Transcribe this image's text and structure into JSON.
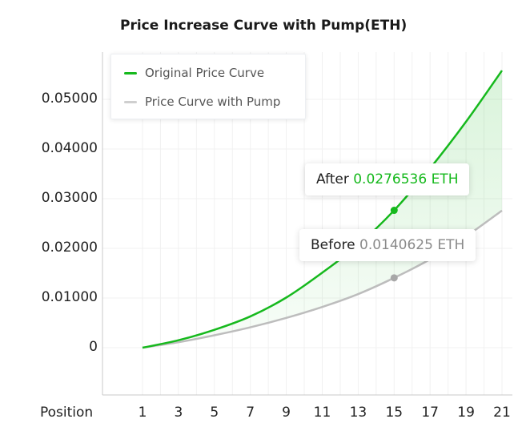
{
  "chart_data": {
    "type": "line",
    "title": "Price Increase Curve with Pump(ETH)",
    "xlabel": "Position",
    "ylabel": "",
    "x_ticks": [
      1,
      3,
      5,
      7,
      9,
      11,
      13,
      15,
      17,
      19,
      21
    ],
    "y_ticks": [
      "0",
      "0.01000",
      "0.02000",
      "0.03000",
      "0.04000",
      "0.05000"
    ],
    "xlim": [
      1,
      21
    ],
    "ylim": [
      -0.009,
      0.058
    ],
    "grid": true,
    "legend_position": "top-left",
    "series": [
      {
        "name": "Original Price Curve",
        "color": "#16b91d",
        "x": [
          1,
          3,
          5,
          7,
          9,
          11,
          13,
          15,
          17,
          19,
          21
        ],
        "y": [
          0,
          0.0015,
          0.0036,
          0.0063,
          0.0101,
          0.0151,
          0.0207,
          0.0276536,
          0.0361,
          0.0455,
          0.0558
        ]
      },
      {
        "name": "Price Curve with Pump",
        "color": "#bdbdbd",
        "x": [
          1,
          3,
          5,
          7,
          9,
          11,
          13,
          15,
          17,
          19,
          21
        ],
        "y": [
          0,
          0.0011,
          0.0025,
          0.0041,
          0.006,
          0.0082,
          0.0108,
          0.0140625,
          0.0178,
          0.0224,
          0.0276
        ]
      }
    ],
    "annotations": [
      {
        "prefix": "After",
        "value": "0.0276536 ETH",
        "x": 15,
        "y": 0.0276536,
        "value_color": "#16b91d"
      },
      {
        "prefix": "Before",
        "value": "0.0140625 ETH",
        "x": 15,
        "y": 0.0140625,
        "value_color": "#8a8a8a"
      }
    ]
  }
}
